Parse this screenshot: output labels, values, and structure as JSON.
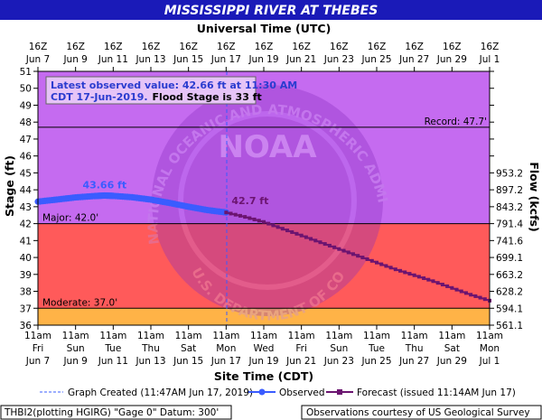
{
  "chart_data": {
    "type": "line",
    "title": "MISSISSIPPI RIVER AT THEBES",
    "top_axis_label": "Universal Time (UTC)",
    "xlabel": "Site Time (CDT)",
    "ylabel": "Stage (ft)",
    "ylabel_right": "Flow (kcfs)",
    "ylim": [
      36,
      51
    ],
    "xlim": [
      "2019-06-07T11:00",
      "2019-07-01T11:00"
    ],
    "y_ticks": [
      36,
      37,
      38,
      39,
      40,
      41,
      42,
      43,
      44,
      45,
      46,
      47,
      48,
      49,
      50,
      51
    ],
    "bottom_ticks": [
      {
        "time": "11am",
        "day": "Fri",
        "date": "Jun 7"
      },
      {
        "time": "11am",
        "day": "Sun",
        "date": "Jun 9"
      },
      {
        "time": "11am",
        "day": "Tue",
        "date": "Jun 11"
      },
      {
        "time": "11am",
        "day": "Thu",
        "date": "Jun 13"
      },
      {
        "time": "11am",
        "day": "Sat",
        "date": "Jun 15"
      },
      {
        "time": "11am",
        "day": "Mon",
        "date": "Jun 17"
      },
      {
        "time": "11am",
        "day": "Wed",
        "date": "Jun 19"
      },
      {
        "time": "11am",
        "day": "Fri",
        "date": "Jun 21"
      },
      {
        "time": "11am",
        "day": "Sun",
        "date": "Jun 23"
      },
      {
        "time": "11am",
        "day": "Tue",
        "date": "Jun 25"
      },
      {
        "time": "11am",
        "day": "Thu",
        "date": "Jun 27"
      },
      {
        "time": "11am",
        "day": "Sat",
        "date": "Jun 29"
      },
      {
        "time": "11am",
        "day": "Mon",
        "date": "Jul 1"
      }
    ],
    "top_ticks": [
      {
        "time": "16Z",
        "date": "Jun 7"
      },
      {
        "time": "16Z",
        "date": "Jun 9"
      },
      {
        "time": "16Z",
        "date": "Jun 11"
      },
      {
        "time": "16Z",
        "date": "Jun 13"
      },
      {
        "time": "16Z",
        "date": "Jun 15"
      },
      {
        "time": "16Z",
        "date": "Jun 17"
      },
      {
        "time": "16Z",
        "date": "Jun 19"
      },
      {
        "time": "16Z",
        "date": "Jun 21"
      },
      {
        "time": "16Z",
        "date": "Jun 23"
      },
      {
        "time": "16Z",
        "date": "Jun 25"
      },
      {
        "time": "16Z",
        "date": "Jun 27"
      },
      {
        "time": "16Z",
        "date": "Jun 29"
      },
      {
        "time": "16Z",
        "date": "Jul 1"
      }
    ],
    "flow_ticks": [
      {
        "stage": 36,
        "label": "561.1"
      },
      {
        "stage": 37,
        "label": "594.1"
      },
      {
        "stage": 38,
        "label": "628.2"
      },
      {
        "stage": 39,
        "label": "663.2"
      },
      {
        "stage": 40,
        "label": "699.1"
      },
      {
        "stage": 41,
        "label": "741.6"
      },
      {
        "stage": 42,
        "label": "791.4"
      },
      {
        "stage": 43,
        "label": "843.2"
      },
      {
        "stage": 44,
        "label": "897.2"
      },
      {
        "stage": 45,
        "label": "953.2"
      }
    ],
    "thresholds": [
      {
        "name": "Record",
        "stage": 47.7,
        "label": "Record: 47.7'",
        "color": "#000000"
      },
      {
        "name": "Major",
        "stage": 42.0,
        "label": "Major: 42.0'",
        "color": "#ff5a5a"
      },
      {
        "name": "Moderate",
        "stage": 37.0,
        "label": "Moderate: 37.0'",
        "color": "#ffb347"
      }
    ],
    "band_colors": {
      "above_major": "#c56bf0",
      "major": "#ff5a5a",
      "moderate": "#ffb347"
    },
    "series": [
      {
        "name": "Observed",
        "color": "#3a5cff",
        "peak_label": "43.66 ft",
        "peak": {
          "t": "2019-06-11T00:00",
          "v": 43.66
        },
        "points": [
          {
            "t": "2019-06-07T11:00",
            "v": 43.3
          },
          {
            "t": "2019-06-08T11:00",
            "v": 43.42
          },
          {
            "t": "2019-06-09T11:00",
            "v": 43.55
          },
          {
            "t": "2019-06-10T11:00",
            "v": 43.63
          },
          {
            "t": "2019-06-11T00:00",
            "v": 43.66
          },
          {
            "t": "2019-06-11T11:00",
            "v": 43.64
          },
          {
            "t": "2019-06-12T11:00",
            "v": 43.56
          },
          {
            "t": "2019-06-13T11:00",
            "v": 43.42
          },
          {
            "t": "2019-06-14T11:00",
            "v": 43.22
          },
          {
            "t": "2019-06-15T11:00",
            "v": 43.0
          },
          {
            "t": "2019-06-16T11:00",
            "v": 42.8
          },
          {
            "t": "2019-06-17T11:00",
            "v": 42.66
          }
        ]
      },
      {
        "name": "Forecast",
        "color": "#6b1470",
        "start_label": "42.7 ft",
        "points": [
          {
            "t": "2019-06-17T11:00",
            "v": 42.66
          },
          {
            "t": "2019-06-18T11:00",
            "v": 42.4
          },
          {
            "t": "2019-06-19T11:00",
            "v": 42.1
          },
          {
            "t": "2019-06-20T11:00",
            "v": 41.7
          },
          {
            "t": "2019-06-21T11:00",
            "v": 41.3
          },
          {
            "t": "2019-06-22T11:00",
            "v": 40.9
          },
          {
            "t": "2019-06-23T11:00",
            "v": 40.5
          },
          {
            "t": "2019-06-24T11:00",
            "v": 40.1
          },
          {
            "t": "2019-06-25T11:00",
            "v": 39.7
          },
          {
            "t": "2019-06-26T11:00",
            "v": 39.3
          },
          {
            "t": "2019-06-27T11:00",
            "v": 38.95
          },
          {
            "t": "2019-06-28T11:00",
            "v": 38.6
          },
          {
            "t": "2019-06-29T11:00",
            "v": 38.2
          },
          {
            "t": "2019-06-30T11:00",
            "v": 37.8
          },
          {
            "t": "2019-07-01T11:00",
            "v": 37.45
          }
        ]
      }
    ],
    "graph_created": "2019-06-17T11:47"
  },
  "info_box": {
    "line1": "Latest observed value: 42.66 ft at 11:30 AM",
    "line2a": "CDT 17-Jun-2019.",
    "line2b": "Flood Stage is 33 ft"
  },
  "legend": {
    "created": "Graph Created (11:47AM Jun 17, 2019)",
    "observed": "Observed",
    "forecast": "Forecast (issued 11:14AM Jun 17)"
  },
  "footer": {
    "left": "THBI2(plotting HGIRG) \"Gage 0\" Datum: 300'",
    "right": "Observations courtesy of US Geological Survey"
  },
  "watermark": {
    "top_text": "NATIONAL OCEANIC AND ATMOSPHERIC ADMINISTRATION",
    "bottom_text": "U.S. DEPARTMENT OF COMMERCE",
    "center": "NOAA"
  },
  "colors": {
    "title_bar": "#1a1ab8",
    "plot_bg": "#c56bf0",
    "observed": "#3a5cff",
    "forecast": "#6b1470"
  }
}
